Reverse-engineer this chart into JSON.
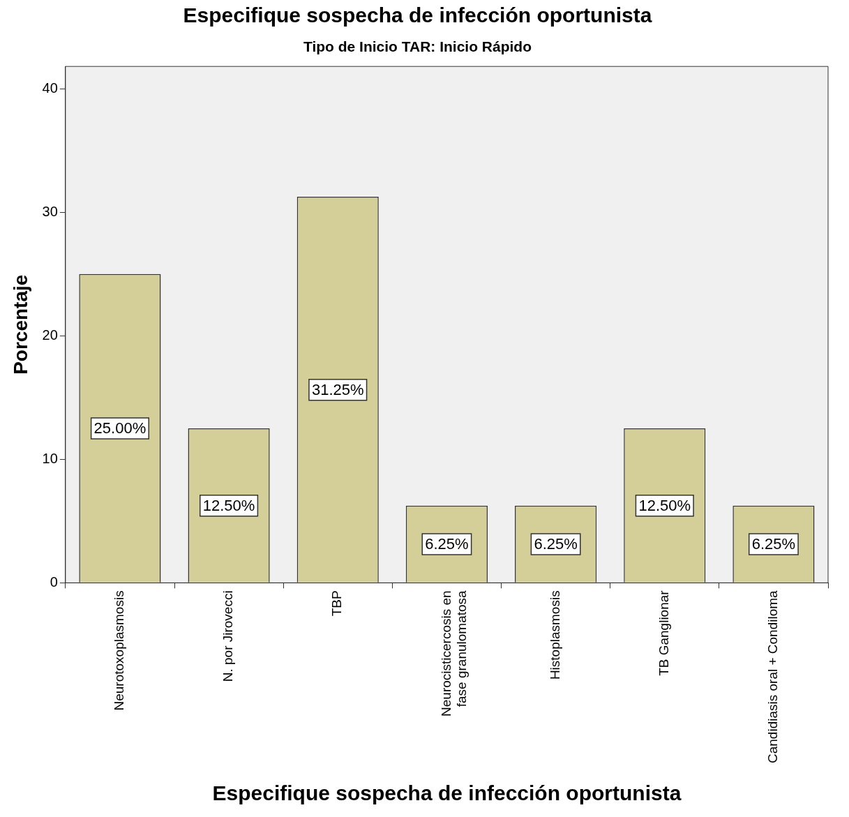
{
  "chart_data": {
    "type": "bar",
    "title": "Especifique sospecha de infección oportunista",
    "subtitle": "Tipo de Inicio TAR: Inicio Rápido",
    "xlabel": "Especifique sospecha de infección oportunista",
    "ylabel": "Porcentaje",
    "categories": [
      "Neurotoxoplasmosis",
      "N. por Jirovecci",
      "TBP",
      "Neurocisticercosis en fase granulomatosa",
      "Histoplasmosis",
      "TB Ganglionar",
      "Candidiasis oral + Condiloma"
    ],
    "values": [
      25.0,
      12.5,
      31.25,
      6.25,
      6.25,
      12.5,
      6.25
    ],
    "value_labels": [
      "25.00%",
      "12.50%",
      "31.25%",
      "6.25%",
      "6.25%",
      "12.50%",
      "6.25%"
    ],
    "color": "#d4cf99",
    "ylim": [
      0,
      41.8
    ],
    "yticks": [
      0,
      10,
      20,
      30,
      40
    ],
    "grid": false,
    "legend": false
  }
}
